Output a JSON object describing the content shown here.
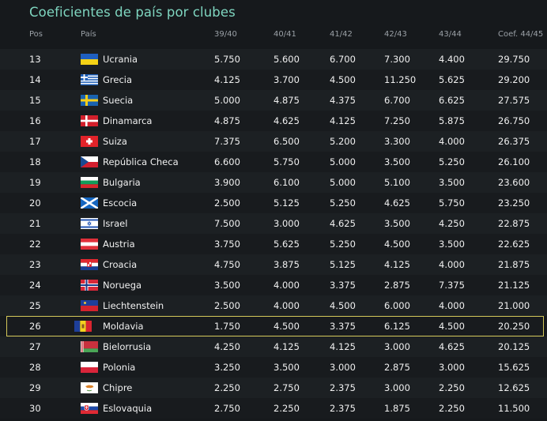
{
  "title": "Coeficientes de país por clubes",
  "columns": {
    "pos": "Pos",
    "country": "País",
    "y1": "39/40",
    "y2": "40/41",
    "y3": "41/42",
    "y4": "42/43",
    "y5": "43/44",
    "coef": "Coef. 44/45"
  },
  "highlight_color": "#d4c85a",
  "rows": [
    {
      "pos": "13",
      "country": "Ucrania",
      "flag": "ukraine-flag-icon",
      "y1": "5.750",
      "y2": "5.600",
      "y3": "6.700",
      "y4": "7.300",
      "y5": "4.400",
      "coef": "29.750"
    },
    {
      "pos": "14",
      "country": "Grecia",
      "flag": "greece-flag-icon",
      "y1": "4.125",
      "y2": "3.700",
      "y3": "4.500",
      "y4": "11.250",
      "y5": "5.625",
      "coef": "29.200"
    },
    {
      "pos": "15",
      "country": "Suecia",
      "flag": "sweden-flag-icon",
      "y1": "5.000",
      "y2": "4.875",
      "y3": "4.375",
      "y4": "6.700",
      "y5": "6.625",
      "coef": "27.575"
    },
    {
      "pos": "16",
      "country": "Dinamarca",
      "flag": "denmark-flag-icon",
      "y1": "4.875",
      "y2": "4.625",
      "y3": "4.125",
      "y4": "7.250",
      "y5": "5.875",
      "coef": "26.750"
    },
    {
      "pos": "17",
      "country": "Suiza",
      "flag": "switzerland-flag-icon",
      "y1": "7.375",
      "y2": "6.500",
      "y3": "5.200",
      "y4": "3.300",
      "y5": "4.000",
      "coef": "26.375"
    },
    {
      "pos": "18",
      "country": "República Checa",
      "flag": "czech-flag-icon",
      "y1": "6.600",
      "y2": "5.750",
      "y3": "5.000",
      "y4": "3.500",
      "y5": "5.250",
      "coef": "26.100"
    },
    {
      "pos": "19",
      "country": "Bulgaria",
      "flag": "bulgaria-flag-icon",
      "y1": "3.900",
      "y2": "6.100",
      "y3": "5.000",
      "y4": "5.100",
      "y5": "3.500",
      "coef": "23.600"
    },
    {
      "pos": "20",
      "country": "Escocia",
      "flag": "scotland-flag-icon",
      "y1": "2.500",
      "y2": "5.125",
      "y3": "5.250",
      "y4": "4.625",
      "y5": "5.750",
      "coef": "23.250"
    },
    {
      "pos": "21",
      "country": "Israel",
      "flag": "israel-flag-icon",
      "y1": "7.500",
      "y2": "3.000",
      "y3": "4.625",
      "y4": "3.500",
      "y5": "4.250",
      "coef": "22.875"
    },
    {
      "pos": "22",
      "country": "Austria",
      "flag": "austria-flag-icon",
      "y1": "3.750",
      "y2": "5.625",
      "y3": "5.250",
      "y4": "4.500",
      "y5": "3.500",
      "coef": "22.625"
    },
    {
      "pos": "23",
      "country": "Croacia",
      "flag": "croatia-flag-icon",
      "y1": "4.750",
      "y2": "3.875",
      "y3": "5.125",
      "y4": "4.125",
      "y5": "4.000",
      "coef": "21.875"
    },
    {
      "pos": "24",
      "country": "Noruega",
      "flag": "norway-flag-icon",
      "y1": "3.500",
      "y2": "4.000",
      "y3": "3.375",
      "y4": "2.875",
      "y5": "7.375",
      "coef": "21.125"
    },
    {
      "pos": "25",
      "country": "Liechtenstein",
      "flag": "liechtenstein-flag-icon",
      "y1": "2.500",
      "y2": "4.000",
      "y3": "4.500",
      "y4": "6.000",
      "y5": "4.000",
      "coef": "21.000"
    },
    {
      "pos": "26",
      "country": "Moldavia",
      "flag": "moldova-flag-icon",
      "y1": "1.750",
      "y2": "4.500",
      "y3": "3.375",
      "y4": "6.125",
      "y5": "4.500",
      "coef": "20.250",
      "highlighted": true
    },
    {
      "pos": "27",
      "country": "Bielorrusia",
      "flag": "belarus-flag-icon",
      "y1": "4.250",
      "y2": "4.125",
      "y3": "4.125",
      "y4": "3.000",
      "y5": "4.625",
      "coef": "20.125"
    },
    {
      "pos": "28",
      "country": "Polonia",
      "flag": "poland-flag-icon",
      "y1": "3.250",
      "y2": "3.500",
      "y3": "3.000",
      "y4": "2.875",
      "y5": "3.000",
      "coef": "15.625"
    },
    {
      "pos": "29",
      "country": "Chipre",
      "flag": "cyprus-flag-icon",
      "y1": "2.250",
      "y2": "2.750",
      "y3": "2.375",
      "y4": "3.000",
      "y5": "2.250",
      "coef": "12.625"
    },
    {
      "pos": "30",
      "country": "Eslovaquia",
      "flag": "slovakia-flag-icon",
      "y1": "2.750",
      "y2": "2.250",
      "y3": "2.375",
      "y4": "1.875",
      "y5": "2.250",
      "coef": "11.500"
    }
  ]
}
